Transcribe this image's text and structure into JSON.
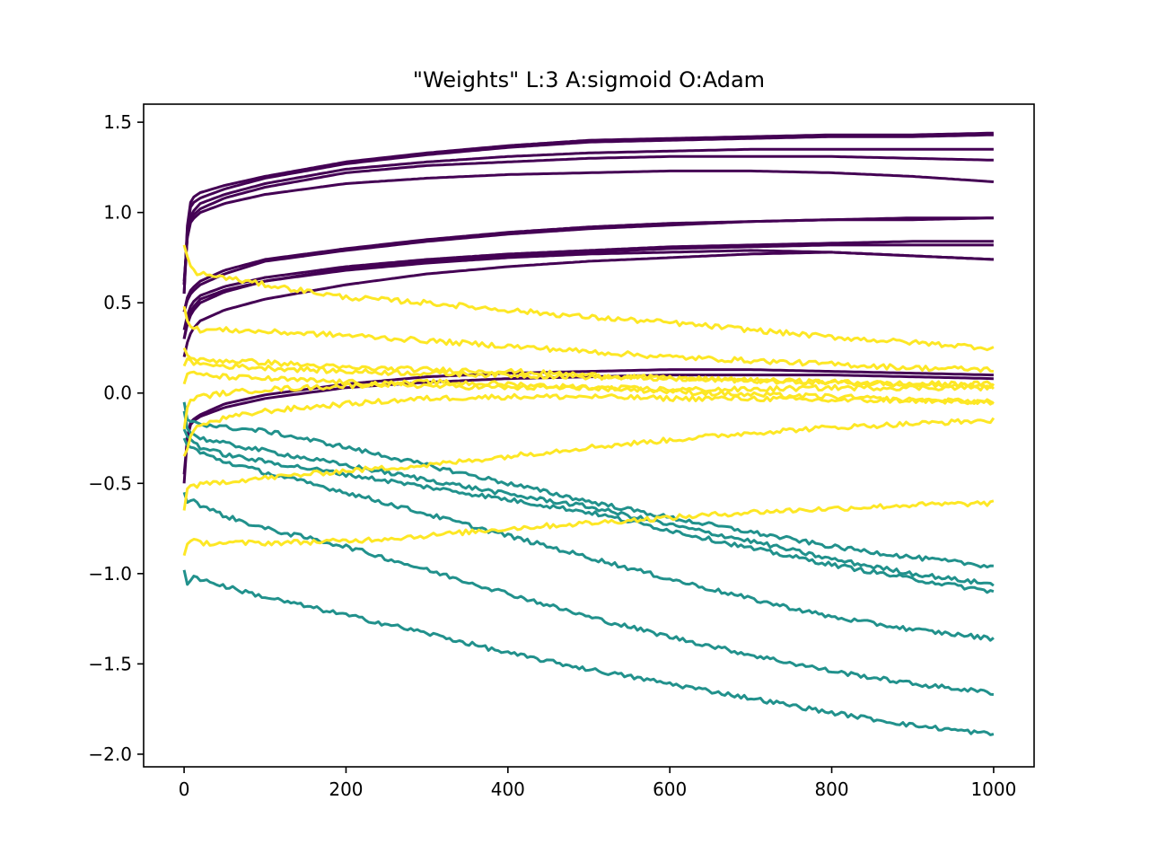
{
  "chart_data": {
    "type": "line",
    "title": "\"Weights\" L:3 A:sigmoid O:Adam",
    "xlabel": "",
    "ylabel": "",
    "xlim": [
      -50,
      1050
    ],
    "ylim": [
      -2.07,
      1.6
    ],
    "x_ticks": [
      0,
      200,
      400,
      600,
      800,
      1000
    ],
    "x_tick_labels": [
      "0",
      "200",
      "400",
      "600",
      "800",
      "1000"
    ],
    "y_ticks": [
      1.5,
      1.0,
      0.5,
      0.0,
      -0.5,
      -1.0,
      -1.5,
      -2.0
    ],
    "y_tick_labels": [
      "1.5",
      "1.0",
      "0.5",
      "0.0",
      "−0.5",
      "−1.0",
      "−1.5",
      "−2.0"
    ],
    "grid": false,
    "legend": "none",
    "colors": {
      "purple": "#440154",
      "teal": "#21918c",
      "yellow": "#fde725"
    },
    "x": [
      0,
      5,
      10,
      20,
      50,
      100,
      200,
      300,
      400,
      500,
      600,
      700,
      800,
      900,
      1000
    ],
    "series": [
      {
        "color": "#440154",
        "values": [
          0.55,
          1.02,
          1.08,
          1.11,
          1.15,
          1.2,
          1.28,
          1.33,
          1.37,
          1.4,
          1.41,
          1.42,
          1.43,
          1.43,
          1.44
        ]
      },
      {
        "color": "#440154",
        "values": [
          0.55,
          1.0,
          1.05,
          1.08,
          1.13,
          1.19,
          1.27,
          1.32,
          1.36,
          1.39,
          1.4,
          1.41,
          1.42,
          1.42,
          1.43
        ]
      },
      {
        "color": "#440154",
        "values": [
          0.6,
          0.95,
          1.0,
          1.05,
          1.1,
          1.16,
          1.24,
          1.28,
          1.31,
          1.33,
          1.34,
          1.35,
          1.35,
          1.35,
          1.35
        ]
      },
      {
        "color": "#440154",
        "values": [
          0.6,
          0.93,
          0.98,
          1.02,
          1.08,
          1.14,
          1.22,
          1.26,
          1.28,
          1.3,
          1.31,
          1.31,
          1.31,
          1.3,
          1.29
        ]
      },
      {
        "color": "#440154",
        "values": [
          0.62,
          0.92,
          0.96,
          1.0,
          1.05,
          1.1,
          1.16,
          1.19,
          1.21,
          1.22,
          1.23,
          1.23,
          1.22,
          1.2,
          1.17
        ]
      },
      {
        "color": "#440154",
        "values": [
          0.45,
          0.55,
          0.58,
          0.62,
          0.68,
          0.74,
          0.8,
          0.85,
          0.89,
          0.92,
          0.94,
          0.95,
          0.96,
          0.97,
          0.97
        ]
      },
      {
        "color": "#440154",
        "values": [
          0.45,
          0.53,
          0.56,
          0.6,
          0.66,
          0.73,
          0.79,
          0.84,
          0.88,
          0.91,
          0.93,
          0.95,
          0.96,
          0.96,
          0.97
        ]
      },
      {
        "color": "#440154",
        "values": [
          0.35,
          0.45,
          0.5,
          0.54,
          0.59,
          0.64,
          0.7,
          0.74,
          0.77,
          0.79,
          0.81,
          0.82,
          0.83,
          0.84,
          0.84
        ]
      },
      {
        "color": "#440154",
        "values": [
          0.3,
          0.42,
          0.47,
          0.52,
          0.57,
          0.62,
          0.69,
          0.73,
          0.76,
          0.78,
          0.8,
          0.81,
          0.82,
          0.82,
          0.82
        ]
      },
      {
        "color": "#440154",
        "values": [
          0.3,
          0.4,
          0.45,
          0.5,
          0.56,
          0.62,
          0.68,
          0.72,
          0.75,
          0.77,
          0.78,
          0.79,
          0.78,
          0.76,
          0.74
        ]
      },
      {
        "color": "#440154",
        "values": [
          0.2,
          0.3,
          0.35,
          0.4,
          0.46,
          0.52,
          0.6,
          0.66,
          0.7,
          0.73,
          0.75,
          0.77,
          0.78,
          0.76,
          0.74
        ]
      },
      {
        "color": "#440154",
        "values": [
          -0.5,
          -0.18,
          -0.15,
          -0.12,
          -0.06,
          -0.01,
          0.05,
          0.09,
          0.11,
          0.12,
          0.13,
          0.13,
          0.12,
          0.11,
          0.1
        ]
      },
      {
        "color": "#440154",
        "values": [
          -0.45,
          -0.2,
          -0.16,
          -0.13,
          -0.08,
          -0.03,
          0.03,
          0.06,
          0.08,
          0.09,
          0.1,
          0.1,
          0.1,
          0.09,
          0.08
        ]
      },
      {
        "color": "#21918c",
        "values": [
          -0.05,
          -0.17,
          -0.15,
          -0.17,
          -0.19,
          -0.21,
          -0.3,
          -0.4,
          -0.5,
          -0.6,
          -0.69,
          -0.77,
          -0.85,
          -0.91,
          -0.96
        ]
      },
      {
        "color": "#21918c",
        "values": [
          -0.1,
          -0.22,
          -0.22,
          -0.25,
          -0.28,
          -0.32,
          -0.4,
          -0.48,
          -0.56,
          -0.63,
          -0.73,
          -0.82,
          -0.92,
          -1.0,
          -1.06
        ]
      },
      {
        "color": "#21918c",
        "values": [
          -0.2,
          -0.25,
          -0.26,
          -0.3,
          -0.34,
          -0.38,
          -0.45,
          -0.52,
          -0.59,
          -0.66,
          -0.76,
          -0.86,
          -0.95,
          -1.03,
          -1.1
        ]
      },
      {
        "color": "#21918c",
        "values": [
          -0.25,
          -0.3,
          -0.3,
          -0.33,
          -0.38,
          -0.44,
          -0.55,
          -0.67,
          -0.79,
          -0.91,
          -1.03,
          -1.14,
          -1.24,
          -1.31,
          -1.36
        ]
      },
      {
        "color": "#21918c",
        "values": [
          -0.55,
          -0.62,
          -0.58,
          -0.62,
          -0.68,
          -0.75,
          -0.85,
          -0.98,
          -1.11,
          -1.24,
          -1.35,
          -1.45,
          -1.54,
          -1.61,
          -1.66
        ]
      },
      {
        "color": "#21918c",
        "values": [
          -0.98,
          -1.08,
          -1.01,
          -1.03,
          -1.07,
          -1.13,
          -1.23,
          -1.33,
          -1.44,
          -1.53,
          -1.61,
          -1.69,
          -1.77,
          -1.84,
          -1.89
        ]
      },
      {
        "color": "#fde725",
        "values": [
          0.82,
          0.74,
          0.68,
          0.66,
          0.64,
          0.6,
          0.53,
          0.5,
          0.46,
          0.42,
          0.39,
          0.35,
          0.31,
          0.28,
          0.25
        ]
      },
      {
        "color": "#fde725",
        "values": [
          0.48,
          0.38,
          0.36,
          0.35,
          0.35,
          0.34,
          0.32,
          0.29,
          0.26,
          0.23,
          0.2,
          0.18,
          0.16,
          0.14,
          0.13
        ]
      },
      {
        "color": "#fde725",
        "values": [
          0.25,
          0.2,
          0.19,
          0.18,
          0.18,
          0.17,
          0.14,
          0.13,
          0.12,
          0.1,
          0.08,
          0.07,
          0.06,
          0.05,
          0.05
        ]
      },
      {
        "color": "#fde725",
        "values": [
          0.15,
          0.2,
          0.17,
          0.16,
          0.15,
          0.14,
          0.12,
          0.11,
          0.1,
          0.09,
          0.08,
          0.07,
          0.06,
          0.05,
          0.04
        ]
      },
      {
        "color": "#fde725",
        "values": [
          0.05,
          0.12,
          0.11,
          0.1,
          0.09,
          0.08,
          0.06,
          0.04,
          0.03,
          0.03,
          0.02,
          0.02,
          0.03,
          0.03,
          0.03
        ]
      },
      {
        "color": "#fde725",
        "values": [
          -0.2,
          -0.05,
          -0.03,
          -0.02,
          0.0,
          0.02,
          0.04,
          0.06,
          0.05,
          0.03,
          0.01,
          -0.01,
          -0.02,
          -0.04,
          -0.05
        ]
      },
      {
        "color": "#fde725",
        "values": [
          -0.35,
          -0.3,
          -0.2,
          -0.18,
          -0.14,
          -0.1,
          -0.06,
          -0.03,
          -0.02,
          -0.02,
          -0.03,
          -0.03,
          -0.04,
          -0.04,
          -0.05
        ]
      },
      {
        "color": "#fde725",
        "values": [
          -0.65,
          -0.5,
          -0.52,
          -0.51,
          -0.49,
          -0.47,
          -0.43,
          -0.4,
          -0.35,
          -0.3,
          -0.26,
          -0.22,
          -0.19,
          -0.17,
          -0.15
        ]
      },
      {
        "color": "#fde725",
        "values": [
          -0.9,
          -0.82,
          -0.82,
          -0.83,
          -0.83,
          -0.83,
          -0.82,
          -0.79,
          -0.75,
          -0.72,
          -0.69,
          -0.66,
          -0.64,
          -0.62,
          -0.61
        ]
      }
    ]
  }
}
